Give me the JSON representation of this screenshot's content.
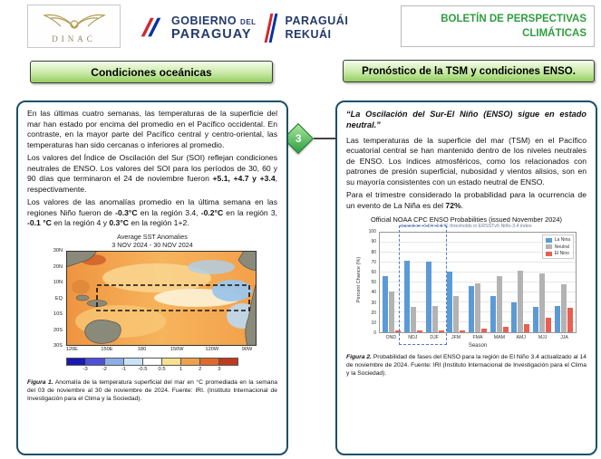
{
  "header": {
    "dinac": {
      "label": "DINAC"
    },
    "gov": {
      "line1_main": "GOBIERNO",
      "line1_small": "DEL",
      "line2": "PARAGUAY",
      "alt1": "PARAGUÁI",
      "alt2": "REKUÁI"
    },
    "bulletin": {
      "line1": "BOLETÍN DE PERSPECTIVAS",
      "line2": "CLIMÁTICAS"
    }
  },
  "connector": {
    "step_number": "3"
  },
  "left_panel": {
    "title": "Condiciones oceánicas",
    "p1": "En las últimas cuatro semanas, las temperaturas de la superficie del mar han estado por encima del promedio en el Pacífico occidental. En contraste, en la mayor parte del Pacífico central y centro-oriental, las temperaturas han sido cercanas o inferiores al promedio.",
    "p2a": "Los valores del Índice de Oscilación del Sur (SOI) reflejan condiciones neutrales de ENSO. Los valores del SOI para los períodos de 30, 60 y 90 días que terminaron el 24 de noviembre fueron ",
    "p2b": "+5.1, +4.7 y +3.4",
    "p2c": ", respectivamente.",
    "p3a": " Los valores de las anomalías promedio en la última semana en las regiones Niño fueron de ",
    "p3b": "-0.3°C",
    "p3c": " en la región 3.4, ",
    "p3d": "-0.2°C",
    "p3e": " en la región 3, ",
    "p3f": "-0.1 °C",
    "p3g": " en la región 4 y ",
    "p3h": "0.3°C",
    "p3i": " en la región 1+2.",
    "figure1": {
      "title_line1": "Average SST Anomalies",
      "title_line2": "3 NOV 2024 - 30 NOV 2024",
      "lat_labels": [
        "30N",
        "20N",
        "10N",
        "EQ",
        "10S",
        "20S",
        "30S"
      ],
      "lon_labels": [
        "120E",
        "150E",
        "180",
        "150W",
        "120W",
        "90W"
      ],
      "colorbar": {
        "colors": [
          "#1a1ab2",
          "#4f4fd9",
          "#8caee8",
          "#c9e2f5",
          "#ffffff",
          "#f8e08e",
          "#f0a04b",
          "#e06a2b",
          "#c03a1e"
        ],
        "labels": [
          "-3",
          "-2",
          "-1",
          "-0.5",
          "0.5",
          "1",
          "2",
          "3"
        ]
      },
      "caption_prefix": "Figura 1.",
      "caption_text": " Anomalía de la temperatura superficial del mar en °C promediada en la semana del 03 de noviembre al 30 de noviembre de 2024. Fuente: IRI. (Instituto Internacional de Investigación para el Clima y la Sociedad)."
    }
  },
  "right_panel": {
    "title": "Pronóstico de la TSM y condiciones ENSO.",
    "quote": "“La Oscilación del Sur-El Niño (ENSO) sigue en estado neutral.”",
    "p1": "Las temperaturas de la superficie del mar (TSM) en el Pacífico ecuatorial central se han mantenido dentro de los niveles neutrales de ENSO. Los índices atmosféricos, como los relacionados con patrones de presión superficial, nubosidad y vientos alisios, son en su mayoría consistentes con un estado neutral de ENSO.",
    "p2a": "Para el trimestre considerado la probabilidad para la ocurrencia de un evento de La Niña es del ",
    "p2b": "72%",
    "p2c": ".",
    "figure2": {
      "chart_data": {
        "type": "bar",
        "title": "Official NOAA CPC ENSO Probabilities (issued November 2024)",
        "subtitle": "based on -0.5°/+0.5°C thresholds in ERSSTv5 Niño-3.4 index",
        "xlabel": "Season",
        "ylabel": "Percent Chance (%)",
        "ylim": [
          0,
          100
        ],
        "yticks": [
          0,
          10,
          20,
          30,
          40,
          50,
          60,
          70,
          80,
          90,
          100
        ],
        "categories": [
          "OND",
          "NDJ",
          "DJF",
          "JFM",
          "FMA",
          "MAM",
          "AMJ",
          "MJJ",
          "JJA"
        ],
        "series": [
          {
            "name": "La Nina",
            "color": "#5b9bd5",
            "values": [
              57,
              72,
              71,
              61,
              47,
              37,
              30,
              26,
              27
            ]
          },
          {
            "name": "Neutral",
            "color": "#b3b3b3",
            "values": [
              41,
              26,
              27,
              37,
              49,
              57,
              62,
              59,
              48
            ]
          },
          {
            "name": "El Nino",
            "color": "#e8604f",
            "values": [
              2,
              2,
              2,
              2,
              4,
              6,
              8,
              15,
              25
            ]
          }
        ],
        "legend_position": "top-right",
        "highlight_seasons": [
          "NDJ",
          "DJF"
        ]
      },
      "caption_prefix": "Figura 2.",
      "caption_text": " Probabilidad de fases del ENSO para la región de El Niño 3.4 actualizado al 14 de noviembre de 2024. Fuente: IRI (Instituto Internacional de Investigación para el Clima y la Sociedad)."
    }
  }
}
